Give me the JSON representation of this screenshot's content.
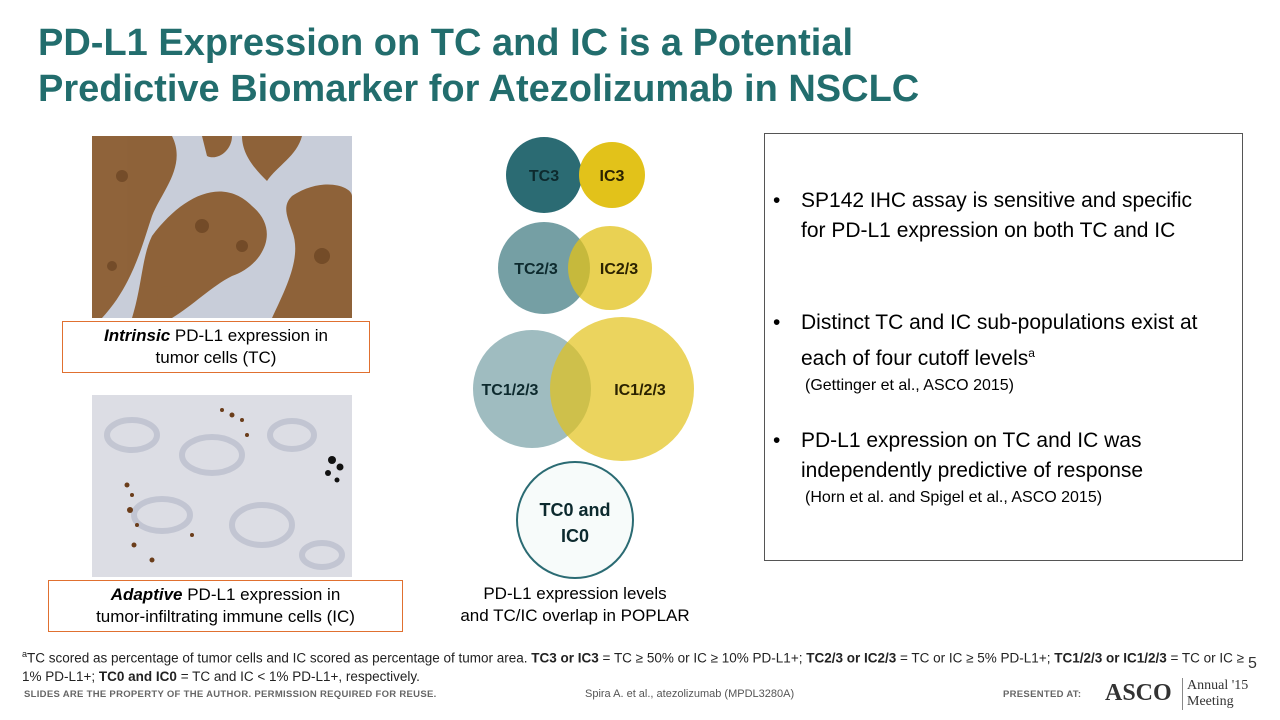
{
  "title": [
    "PD-L1 Expression on TC and IC is a Potential",
    "Predictive Biomarker for Atezolizumab in NSCLC"
  ],
  "images": [
    {
      "emphasis": "Intrinsic",
      "caption_lines": [
        "PD-L1 expression in",
        "tumor cells (TC)"
      ]
    },
    {
      "emphasis": "Adaptive",
      "caption_lines": [
        "PD-L1 expression in",
        "tumor-infiltrating immune cells (IC)"
      ]
    }
  ],
  "venn": {
    "labels": [
      "TC3",
      "IC3",
      "TC2/3",
      "IC2/3",
      "TC1/2/3",
      "IC1/2/3",
      "TC0 and",
      "IC0"
    ],
    "caption_lines": [
      "PD-L1 expression levels",
      "and TC/IC overlap in POPLAR"
    ]
  },
  "bullets": [
    {
      "text": "SP142 IHC assay is sensitive and specific for PD-L1 expression on both TC and IC"
    },
    {
      "text": "Distinct TC and IC sub-populations exist at each of four cutoff levels",
      "sup": "a",
      "ref": "(Gettinger et al., ASCO 2015)"
    },
    {
      "text": "PD-L1 expression on TC and IC was independently predictive of response",
      "ref": "(Horn et al. and Spigel et al., ASCO 2015)"
    }
  ],
  "footnote": {
    "sup": "a",
    "segments": [
      {
        "text": "TC scored as percentage of tumor cells and IC scored as percentage of tumor area. ",
        "bold": false
      },
      {
        "text": "TC3 or IC3",
        "bold": true
      },
      {
        "text": " = TC ≥ 50% or IC ≥ 10% PD-L1+; ",
        "bold": false
      },
      {
        "text": "TC2/3 or IC2/3",
        "bold": true
      },
      {
        "text": " = TC or IC ≥ 5% PD-L1+; ",
        "bold": false
      },
      {
        "text": "TC1/2/3 or IC1/2/3",
        "bold": true
      },
      {
        "text": " = TC or IC ≥ 1% PD-L1+; ",
        "bold": false
      },
      {
        "text": "TC0 and IC0",
        "bold": true
      },
      {
        "text": " = TC and IC < 1% PD-L1+, respectively.",
        "bold": false
      }
    ]
  },
  "page_number": "5",
  "footer": {
    "notice": "SLIDES ARE THE PROPERTY OF THE AUTHOR. PERMISSION REQUIRED FOR REUSE.",
    "citation": "Spira A. et al., atezolizumab (MPDL3280A)",
    "presented_at": "PRESENTED AT:",
    "logo": "ASCO",
    "meeting_lines": [
      "Annual '15",
      "Meeting"
    ]
  }
}
